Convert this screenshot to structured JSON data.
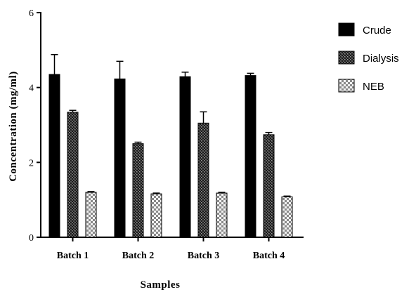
{
  "chart_data": {
    "type": "bar",
    "xlabel": "Samples",
    "ylabel": "Concentration (mg/ml)",
    "ylim": [
      0,
      6
    ],
    "yticks": [
      "0",
      "2",
      "4",
      "6"
    ],
    "categories": [
      "Batch 1",
      "Batch 2",
      "Batch 3",
      "Batch 4"
    ],
    "series": [
      {
        "name": "Crude",
        "pattern": "solid",
        "color": "#000000",
        "values": [
          4.35,
          4.23,
          4.29,
          4.32
        ],
        "errors": [
          0.53,
          0.47,
          0.12,
          0.06
        ]
      },
      {
        "name": "Dialysis",
        "pattern": "crosshatch",
        "color": "#333333",
        "values": [
          3.34,
          2.5,
          3.05,
          2.74
        ],
        "errors": [
          0.05,
          0.04,
          0.3,
          0.06
        ]
      },
      {
        "name": "NEB",
        "pattern": "checker",
        "color": "#e0e0e0",
        "values": [
          1.2,
          1.16,
          1.18,
          1.08
        ],
        "errors": [
          0.02,
          0.02,
          0.02,
          0.02
        ]
      }
    ],
    "grid": false,
    "legend_position": "right"
  }
}
